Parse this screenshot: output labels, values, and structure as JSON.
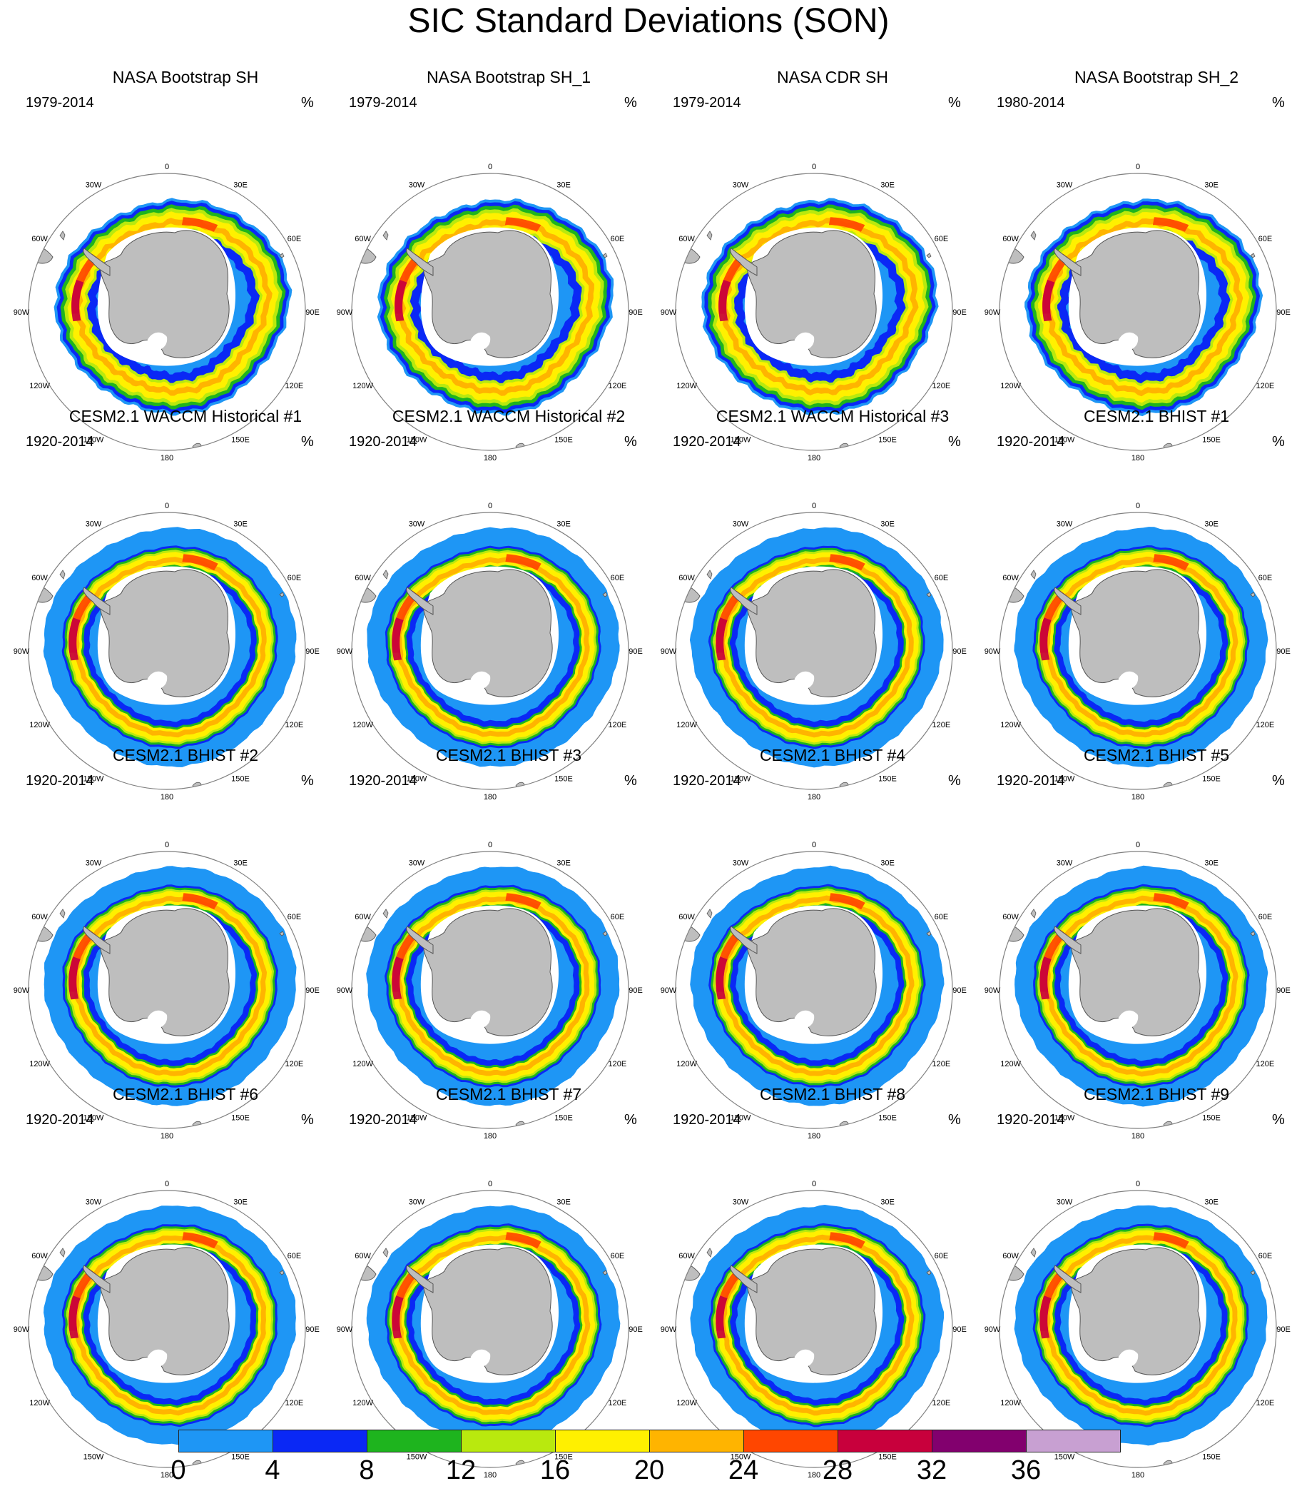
{
  "title": "SIC Standard Deviations (SON)",
  "unit": "%",
  "longitude_labels": [
    "0",
    "30E",
    "60E",
    "90E",
    "120E",
    "150E",
    "180",
    "150W",
    "120W",
    "90W",
    "60W",
    "30W"
  ],
  "panels": [
    {
      "title": "NASA Bootstrap SH",
      "years": "1979-2014",
      "style": "obs"
    },
    {
      "title": "NASA Bootstrap SH_1",
      "years": "1979-2014",
      "style": "obs"
    },
    {
      "title": "NASA CDR SH",
      "years": "1979-2014",
      "style": "obs"
    },
    {
      "title": "NASA Bootstrap SH_2",
      "years": "1980-2014",
      "style": "obs"
    },
    {
      "title": "CESM2.1 WACCM Historical #1",
      "years": "1920-2014",
      "style": "model"
    },
    {
      "title": "CESM2.1 WACCM Historical #2",
      "years": "1920-2014",
      "style": "model"
    },
    {
      "title": "CESM2.1 WACCM Historical #3",
      "years": "1920-2014",
      "style": "model"
    },
    {
      "title": "CESM2.1 BHIST #1",
      "years": "1920-2014",
      "style": "model"
    },
    {
      "title": "CESM2.1 BHIST #2",
      "years": "1920-2014",
      "style": "model"
    },
    {
      "title": "CESM2.1 BHIST #3",
      "years": "1920-2014",
      "style": "model"
    },
    {
      "title": "CESM2.1 BHIST #4",
      "years": "1920-2014",
      "style": "model"
    },
    {
      "title": "CESM2.1 BHIST #5",
      "years": "1920-2014",
      "style": "model"
    },
    {
      "title": "CESM2.1 BHIST #6",
      "years": "1920-2014",
      "style": "model"
    },
    {
      "title": "CESM2.1 BHIST #7",
      "years": "1920-2014",
      "style": "model"
    },
    {
      "title": "CESM2.1 BHIST #8",
      "years": "1920-2014",
      "style": "model"
    },
    {
      "title": "CESM2.1 BHIST #9",
      "years": "1920-2014",
      "style": "model"
    }
  ],
  "colorbar": {
    "labels": [
      "0",
      "4",
      "8",
      "12",
      "16",
      "20",
      "24",
      "28",
      "32",
      "36"
    ],
    "colors": [
      "#1e96f5",
      "#0a28f5",
      "#1eb41e",
      "#b9e90e",
      "#fff000",
      "#ffb400",
      "#ff4600",
      "#c8003c",
      "#82006e",
      "#c8a0d2"
    ]
  },
  "colors": {
    "land": "#bebebe",
    "coast": "#555555",
    "rim": "#7f7f7f"
  }
}
